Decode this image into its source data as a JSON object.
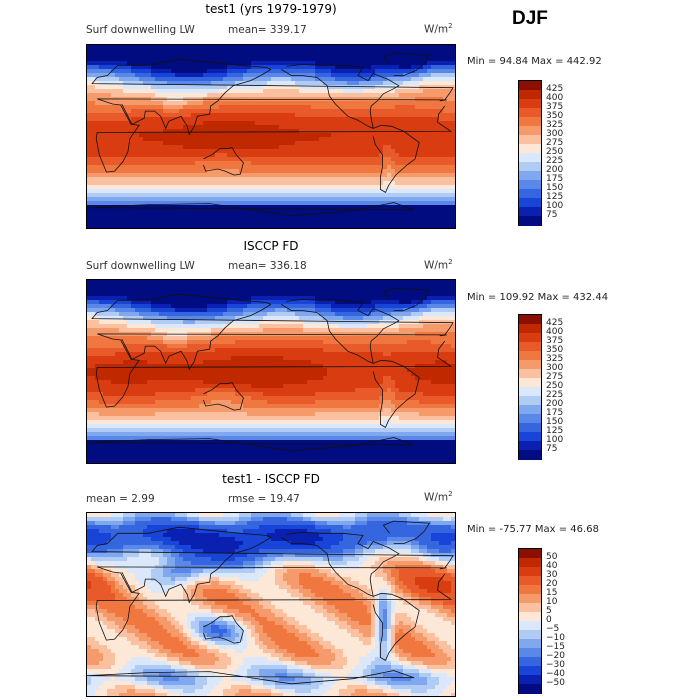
{
  "season": "DJF",
  "panels": [
    {
      "title": "test1 (yrs 1979-1979)",
      "variable": "Surf downwelling LW",
      "stat_text": "mean= 339.17",
      "units_base": "W/m",
      "units_exp": "2",
      "minmax_text": "Min =  94.84 Max = 442.92"
    },
    {
      "title": "ISCCP FD",
      "variable": "Surf downwelling LW",
      "stat_text": "mean= 336.18",
      "units_base": "W/m",
      "units_exp": "2",
      "minmax_text": "Min = 109.92 Max = 432.44"
    },
    {
      "title": "test1 - ISCCP FD",
      "stat_text": "mean =    2.99",
      "rmse_text": "rmse =  19.47",
      "units_base": "W/m",
      "units_exp": "2",
      "minmax_text": "Min = -75.77 Max =  46.68"
    }
  ],
  "chart_data": [
    {
      "type": "heatmap",
      "title": "test1 (yrs 1979-1979)",
      "subtitle": "Surf downwelling LW",
      "units": "W/m^2",
      "mean": 339.17,
      "min": 94.84,
      "max": 442.92,
      "colorbar_levels": [
        "425",
        "400",
        "375",
        "350",
        "325",
        "300",
        "275",
        "250",
        "225",
        "200",
        "175",
        "150",
        "125",
        "100",
        "75"
      ],
      "colorbar_colors": [
        "#8b0f00",
        "#c02800",
        "#d83c10",
        "#e85a2a",
        "#f07840",
        "#f59a6a",
        "#fac0a0",
        "#fde8d8",
        "#dbe8fb",
        "#b0ccf5",
        "#80a8ef",
        "#5a88e8",
        "#3566e0",
        "#1844d8",
        "#0a20b0",
        "#000c80"
      ]
    },
    {
      "type": "heatmap",
      "title": "ISCCP FD",
      "subtitle": "Surf downwelling LW",
      "units": "W/m^2",
      "mean": 336.18,
      "min": 109.92,
      "max": 432.44,
      "colorbar_levels": [
        "425",
        "400",
        "375",
        "350",
        "325",
        "300",
        "275",
        "250",
        "225",
        "200",
        "175",
        "150",
        "125",
        "100",
        "75"
      ],
      "colorbar_colors": [
        "#8b0f00",
        "#c02800",
        "#d83c10",
        "#e85a2a",
        "#f07840",
        "#f59a6a",
        "#fac0a0",
        "#fde8d8",
        "#dbe8fb",
        "#b0ccf5",
        "#80a8ef",
        "#5a88e8",
        "#3566e0",
        "#1844d8",
        "#0a20b0",
        "#000c80"
      ]
    },
    {
      "type": "heatmap",
      "title": "test1 - ISCCP FD",
      "units": "W/m^2",
      "mean": 2.99,
      "rmse": 19.47,
      "min": -75.77,
      "max": 46.68,
      "colorbar_levels": [
        "50",
        "40",
        "30",
        "20",
        "15",
        "10",
        "5",
        "0",
        "−5",
        "−10",
        "−15",
        "−20",
        "−30",
        "−40",
        "−50"
      ],
      "colorbar_colors": [
        "#8b0f00",
        "#c02800",
        "#d83c10",
        "#e85a2a",
        "#f07840",
        "#f59a6a",
        "#fac0a0",
        "#fde8d8",
        "#dbe8fb",
        "#b0ccf5",
        "#80a8ef",
        "#5a88e8",
        "#3566e0",
        "#1844d8",
        "#0a20b0",
        "#000c80"
      ]
    }
  ]
}
